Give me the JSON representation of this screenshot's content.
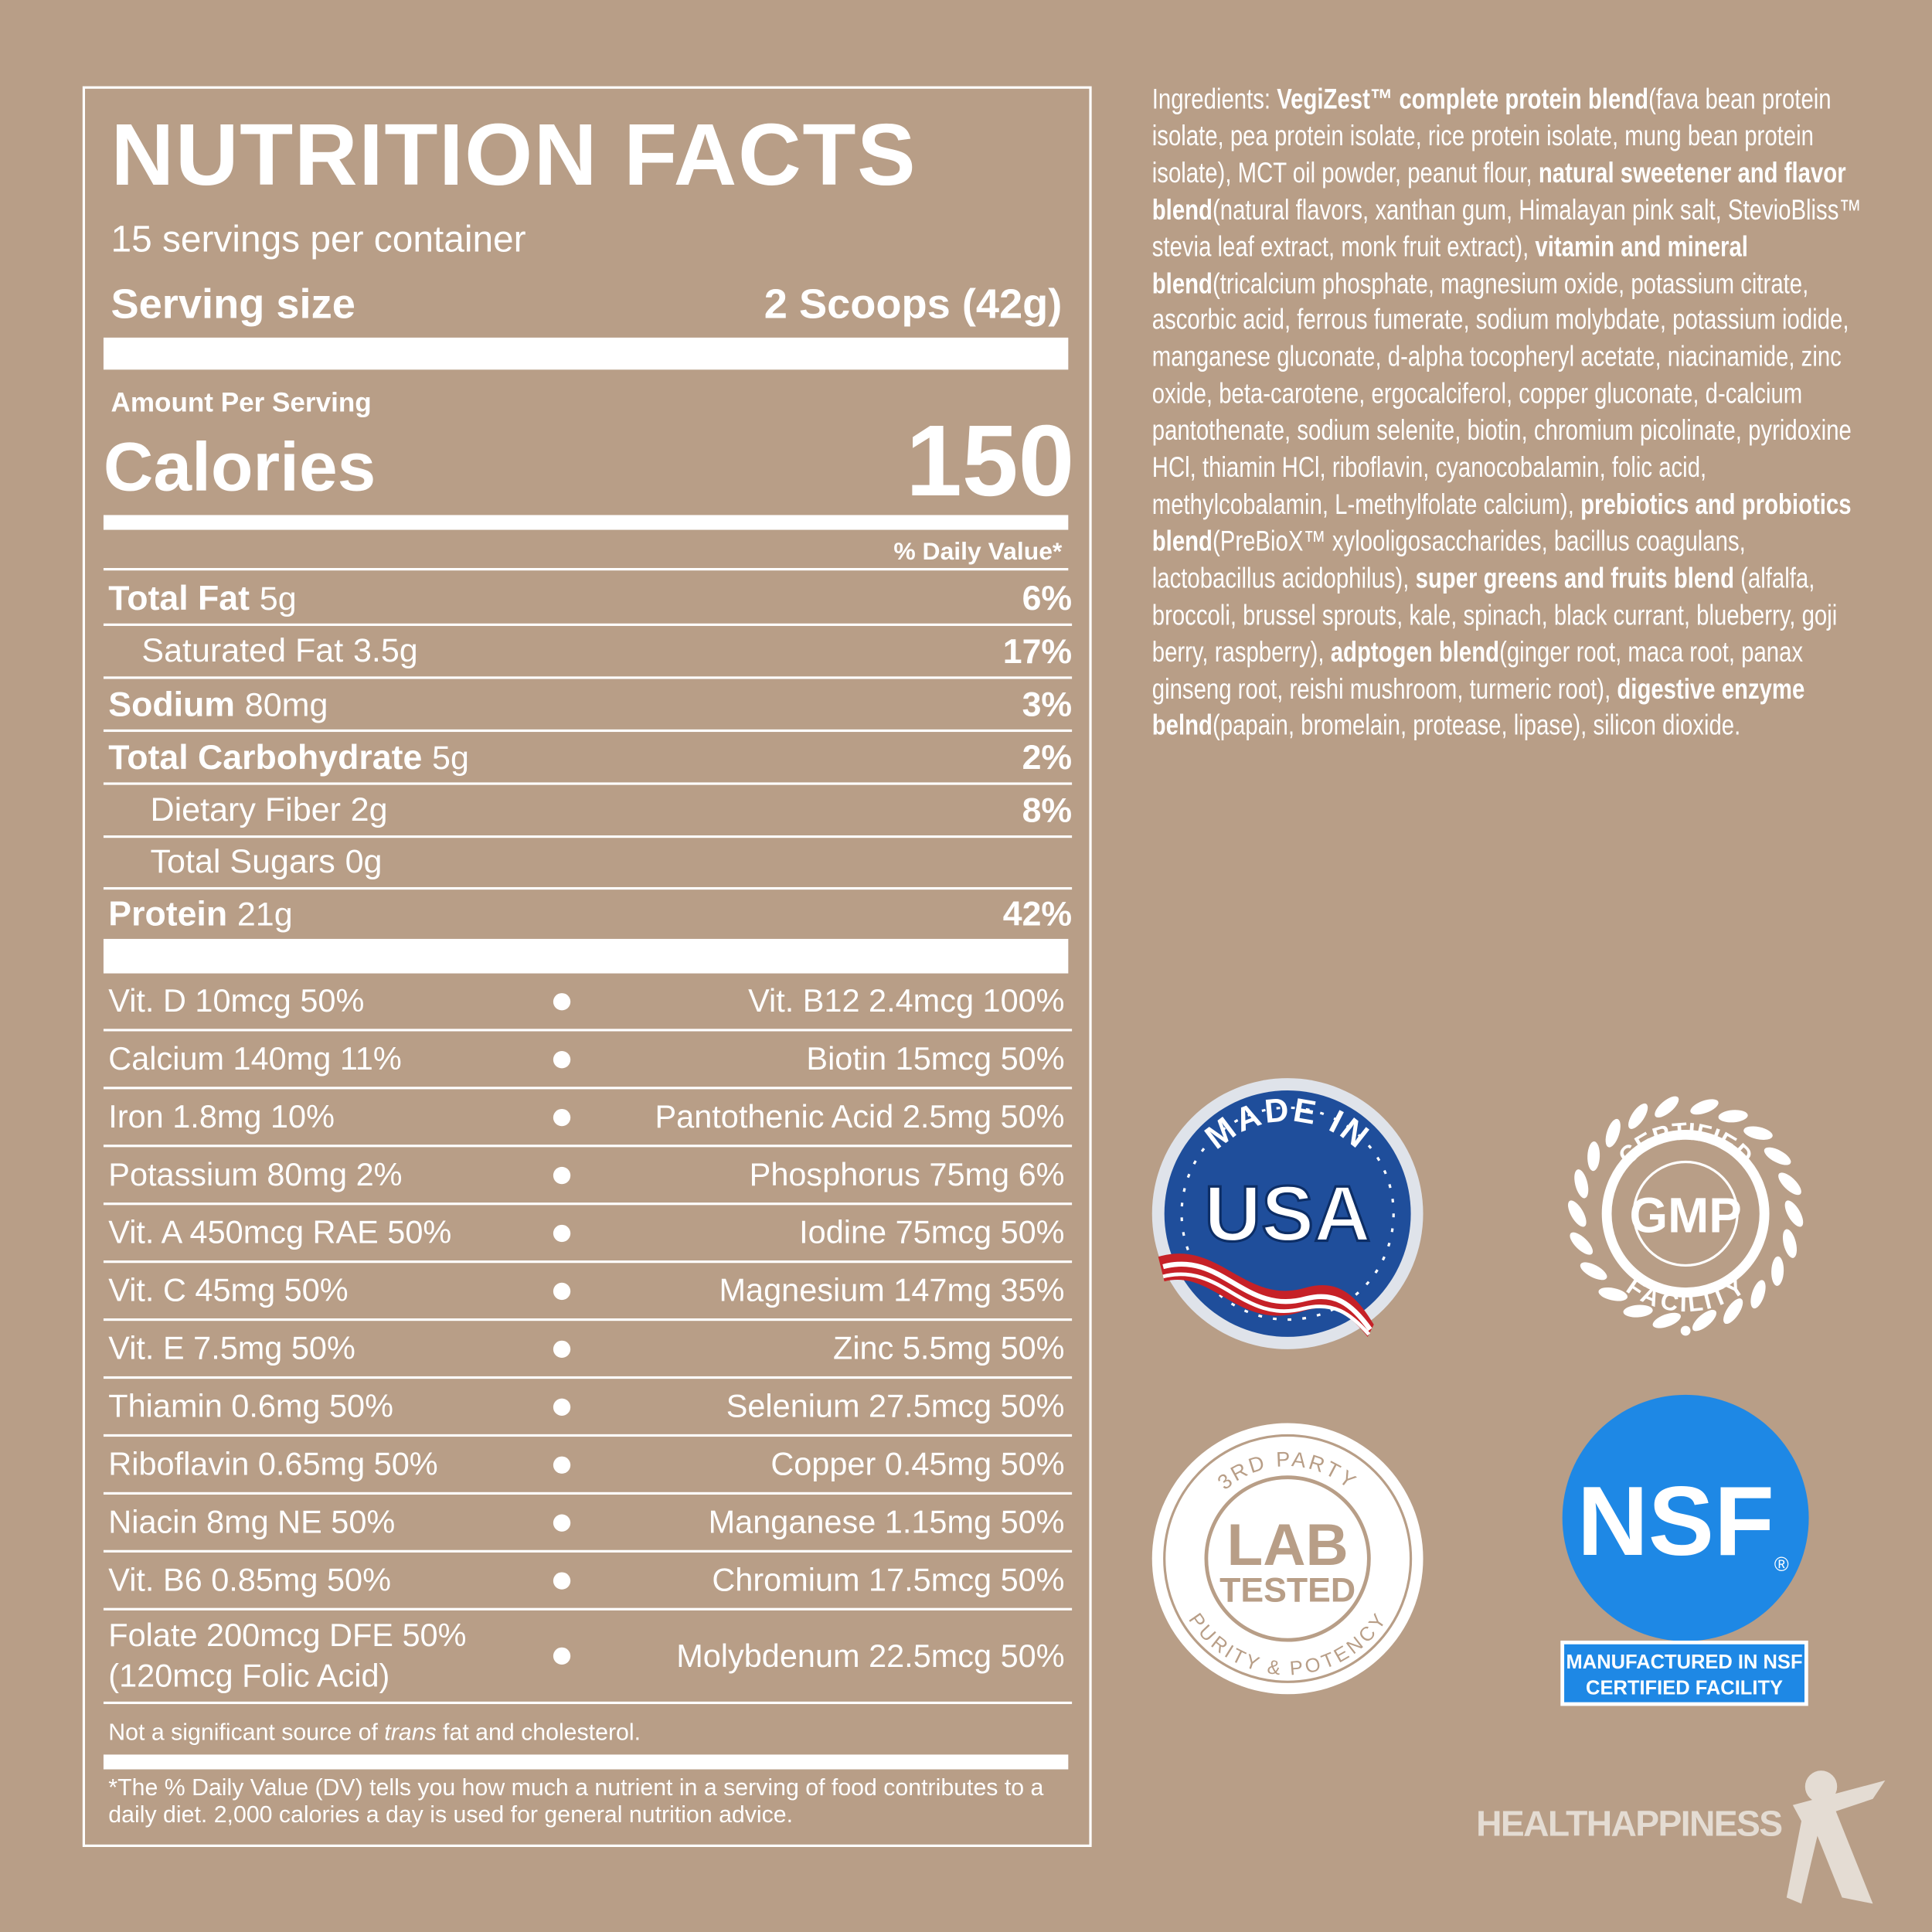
{
  "nutrition_facts": {
    "title": "NUTRITION FACTS",
    "servings_per_container": "15 servings per container",
    "serving_size": {
      "label": "Serving size",
      "value": "2 Scoops (42g)"
    },
    "amount_per_serving": "Amount Per Serving",
    "calories": {
      "label": "Calories",
      "value": "150"
    },
    "daily_value_header": "% Daily Value*",
    "nutrients": [
      {
        "name": "Total Fat",
        "amount": "5g",
        "daily_value": "6%",
        "sub": [
          {
            "name": "Saturated Fat",
            "amount": "3.5g",
            "daily_value": "17%"
          }
        ]
      },
      {
        "name": "Sodium",
        "amount": "80mg",
        "daily_value": "3%"
      },
      {
        "name": "Total Carbohydrate",
        "amount": "5g",
        "daily_value": "2%",
        "sub": [
          {
            "name": "Dietary Fiber",
            "amount": "2g",
            "daily_value": "8%"
          },
          {
            "name": "Total Sugars",
            "amount": "0g"
          }
        ]
      },
      {
        "name": "Protein",
        "amount": "21g",
        "daily_value": "42%"
      }
    ],
    "vitamins_minerals": [
      [
        "Vit. D 10mcg 50%",
        "Vit. B12 2.4mcg 100%"
      ],
      [
        "Calcium 140mg 11%",
        "Biotin 15mcg 50%"
      ],
      [
        "Iron 1.8mg 10%",
        "Pantothenic Acid 2.5mg 50%"
      ],
      [
        "Potassium 80mg 2%",
        "Phosphorus 75mg 6%"
      ],
      [
        "Vit. A 450mcg RAE 50%",
        "Iodine 75mcg 50%"
      ],
      [
        "Vit. C 45mg 50%",
        "Magnesium 147mg 35%"
      ],
      [
        "Vit. E 7.5mg 50%",
        "Zinc 5.5mg 50%"
      ],
      [
        "Thiamin 0.6mg 50%",
        "Selenium 27.5mcg 50%"
      ],
      [
        "Riboflavin 0.65mg 50%",
        "Copper 0.45mg 50%"
      ],
      [
        "Niacin 8mg NE 50%",
        "Manganese 1.15mg 50%"
      ],
      [
        "Vit. B6 0.85mg 50%",
        "Chromium 17.5mcg 50%"
      ],
      [
        "Folate 200mcg DFE 50%\n(120mcg Folic Acid)",
        "Molybdenum 22.5mcg 50%"
      ]
    ],
    "trans_note": [
      "Not a significant source of ",
      "trans",
      " fat and cholesterol."
    ],
    "footnote": "*The % Daily Value (DV) tells you how much a nutrient in a serving of food contributes to a daily diet. 2,000 calories a day is used for general nutrition advice."
  },
  "ingredients": {
    "label": "Ingredients:",
    "segments": [
      {
        "text": "VegiZest™ complete protein blend",
        "bold": true
      },
      {
        "text": "(fava bean protein isolate, pea protein isolate, rice protein isolate, mung bean protein isolate), MCT oil powder, peanut flour, ",
        "bold": false
      },
      {
        "text": "natural sweetener and flavor blend",
        "bold": true
      },
      {
        "text": "(natural flavors, xanthan gum, Himalayan pink salt, StevioBliss™ stevia leaf extract, monk fruit extract), ",
        "bold": false
      },
      {
        "text": "vitamin and mineral blend",
        "bold": true
      },
      {
        "text": "(tricalcium phosphate, magnesium oxide, potassium citrate, ascorbic acid, ferrous fumerate, sodium molybdate, potassium iodide, manganese gluconate, d-alpha tocopheryl acetate, niacinamide, zinc oxide, beta-carotene, ergocalciferol, copper gluconate, d-calcium pantothenate, sodium selenite, biotin, chromium picolinate, pyridoxine HCl, thiamin HCl, riboflavin, cyanocobalamin, folic acid, methylcobalamin, L-methylfolate calcium), ",
        "bold": false
      },
      {
        "text": "prebiotics and probiotics blend",
        "bold": true
      },
      {
        "text": "(PreBioX™ xylooligosaccharides, bacillus coagulans, lactobacillus acidophilus), ",
        "bold": false
      },
      {
        "text": "super greens and fruits blend",
        "bold": true
      },
      {
        "text": " (alfalfa, broccoli, brussel sprouts, kale, spinach, black currant, blueberry, goji berry, raspberry), ",
        "bold": false
      },
      {
        "text": "adptogen blend",
        "bold": true
      },
      {
        "text": "(ginger root, maca root, panax ginseng root, reishi mushroom, turmeric root), ",
        "bold": false
      },
      {
        "text": "digestive enzyme belnd",
        "bold": true
      },
      {
        "text": "(papain, bromelain, protease, lipase), silicon dioxide.",
        "bold": false
      }
    ]
  },
  "badges": {
    "made_in_usa": {
      "top": "MADE IN",
      "main": "USA"
    },
    "gmp": {
      "top": "CERTIFIED",
      "main": "GMP",
      "bottom": "FACILITY"
    },
    "lab_tested": {
      "top": "3RD PARTY",
      "main": [
        "LAB",
        "TESTED"
      ],
      "bottom": "PURITY & POTENCY"
    },
    "nsf": {
      "main": "NSF",
      "mark": "®",
      "caption": [
        "MANUFACTURED IN NSF",
        "CERTIFIED FACILITY"
      ]
    }
  },
  "brand": "HEALTHAPPINESS"
}
